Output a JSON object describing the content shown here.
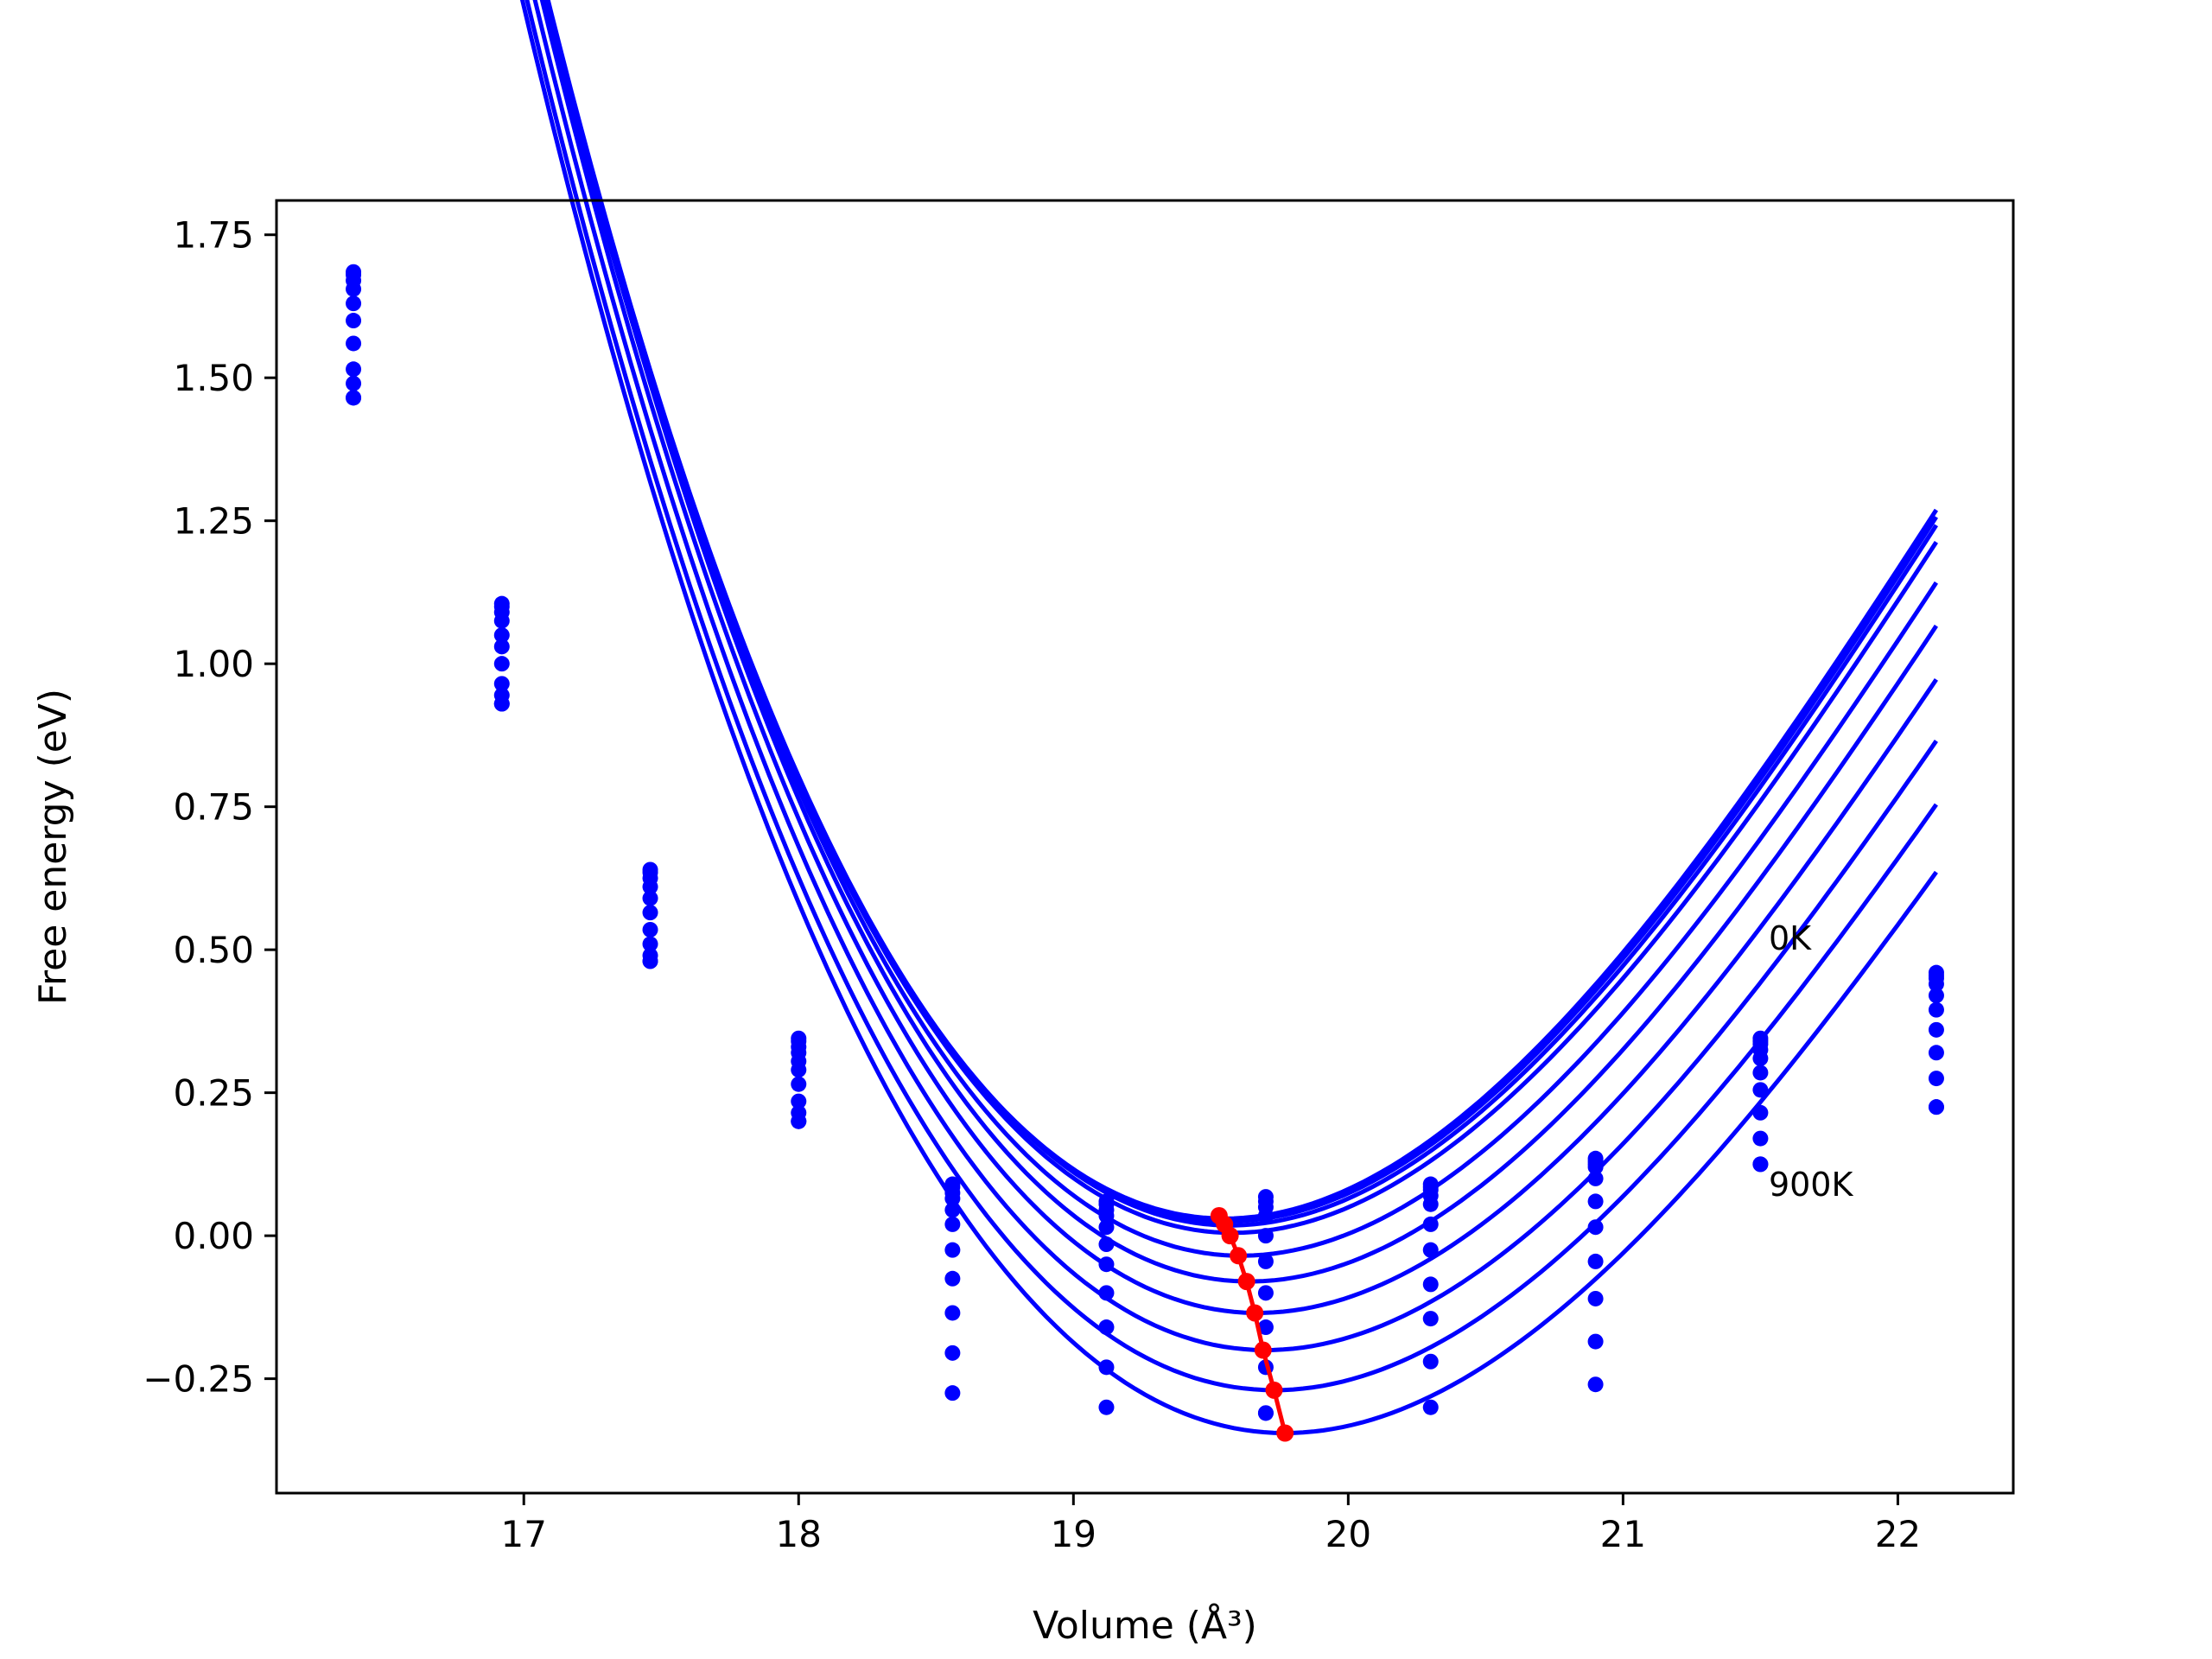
{
  "chart_data": {
    "type": "scatter",
    "title": "",
    "xlabel": "Volume (Å³)",
    "ylabel": "Free energy (eV)",
    "xlim": [
      16.1,
      22.42
    ],
    "ylim": [
      -0.45,
      1.81
    ],
    "xticks": [
      17,
      18,
      19,
      20,
      21,
      22
    ],
    "yticks": [
      {
        "value": -0.25,
        "label": "−0.25"
      },
      {
        "value": 0.0,
        "label": "0.00"
      },
      {
        "value": 0.25,
        "label": "0.25"
      },
      {
        "value": 0.5,
        "label": "0.50"
      },
      {
        "value": 0.75,
        "label": "0.75"
      },
      {
        "value": 1.0,
        "label": "1.00"
      },
      {
        "value": 1.25,
        "label": "1.25"
      },
      {
        "value": 1.5,
        "label": "1.50"
      },
      {
        "value": 1.75,
        "label": "1.75"
      }
    ],
    "grid": false,
    "line_color": "#0000ff",
    "min_color": "#ff0000",
    "volumes": [
      16.38,
      16.92,
      17.46,
      18.0,
      18.56,
      19.12,
      19.7,
      20.3,
      20.9,
      21.5,
      22.14
    ],
    "series": [
      {
        "values": [
          1.685,
          1.105,
          0.64,
          0.345,
          0.09,
          0.06,
          0.068,
          0.09,
          0.135,
          0.345,
          0.46
        ]
      },
      {
        "values": [
          1.68,
          1.1,
          0.635,
          0.34,
          0.085,
          0.055,
          0.06,
          0.085,
          0.13,
          0.34,
          0.455
        ]
      },
      {
        "values": [
          1.67,
          1.09,
          0.625,
          0.33,
          0.075,
          0.045,
          0.05,
          0.08,
          0.125,
          0.335,
          0.45
        ]
      },
      {
        "values": [
          1.655,
          1.075,
          0.61,
          0.32,
          0.065,
          0.035,
          0.035,
          0.07,
          0.12,
          0.325,
          0.44
        ]
      },
      {
        "values": [
          1.63,
          1.05,
          0.59,
          0.305,
          0.045,
          0.015,
          0.0,
          0.055,
          0.1,
          0.31,
          0.42
        ]
      },
      {
        "values": [
          1.6,
          1.03,
          0.565,
          0.29,
          0.02,
          -0.015,
          -0.045,
          0.02,
          0.06,
          0.285,
          0.395
        ]
      },
      {
        "values": [
          1.56,
          1.0,
          0.535,
          0.265,
          -0.025,
          -0.05,
          -0.1,
          -0.025,
          0.015,
          0.255,
          0.36
        ]
      },
      {
        "values": [
          1.515,
          0.965,
          0.51,
          0.235,
          -0.075,
          -0.1,
          -0.16,
          -0.085,
          -0.045,
          0.215,
          0.32
        ]
      },
      {
        "values": [
          1.49,
          0.945,
          0.49,
          0.215,
          -0.135,
          -0.16,
          -0.23,
          -0.145,
          -0.11,
          0.17,
          0.275
        ]
      },
      {
        "values": [
          1.465,
          0.93,
          0.48,
          0.2,
          -0.205,
          -0.23,
          -0.31,
          -0.22,
          -0.185,
          0.125,
          0.225
        ]
      },
      {
        "values": [
          1.465,
          0.93,
          0.48,
          0.2,
          -0.275,
          -0.3,
          -0.31,
          -0.3,
          -0.26,
          0.125,
          0.225
        ]
      }
    ],
    "fits": [
      {
        "v0": 19.55,
        "e0": 0.03,
        "b": 0.268
      },
      {
        "v0": 19.56,
        "e0": 0.025,
        "b": 0.268
      },
      {
        "v0": 19.57,
        "e0": 0.018,
        "b": 0.268
      },
      {
        "v0": 19.58,
        "e0": 0.005,
        "b": 0.266
      },
      {
        "v0": 19.61,
        "e0": -0.035,
        "b": 0.264
      },
      {
        "v0": 19.64,
        "e0": -0.08,
        "b": 0.262
      },
      {
        "v0": 19.67,
        "e0": -0.135,
        "b": 0.258
      },
      {
        "v0": 19.7,
        "e0": -0.2,
        "b": 0.253
      },
      {
        "v0": 19.73,
        "e0": -0.27,
        "b": 0.248
      },
      {
        "v0": 19.77,
        "e0": -0.345,
        "b": 0.244
      }
    ],
    "minima": [
      {
        "x": 19.53,
        "y": 0.035
      },
      {
        "x": 19.55,
        "y": 0.02
      },
      {
        "x": 19.57,
        "y": 0.0
      },
      {
        "x": 19.6,
        "y": -0.035
      },
      {
        "x": 19.63,
        "y": -0.08
      },
      {
        "x": 19.66,
        "y": -0.135
      },
      {
        "x": 19.69,
        "y": -0.2
      },
      {
        "x": 19.73,
        "y": -0.27
      },
      {
        "x": 19.77,
        "y": -0.345
      }
    ],
    "annotations": [
      {
        "text": "0K",
        "x": 21.53,
        "y": 0.5
      },
      {
        "text": "900K",
        "x": 21.53,
        "y": 0.07
      }
    ]
  }
}
